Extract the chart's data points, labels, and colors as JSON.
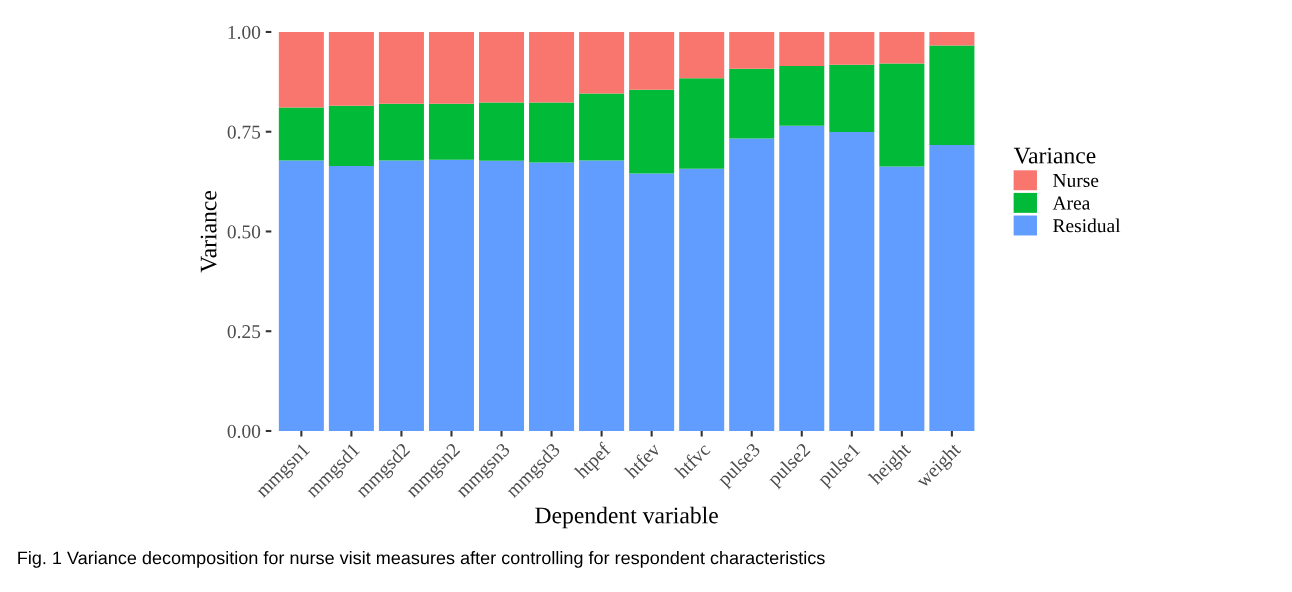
{
  "chart_data": {
    "type": "bar",
    "stacked": true,
    "xlabel": "Dependent variable",
    "ylabel": "Variance",
    "legend_title": "Variance",
    "legend": "right",
    "grid": false,
    "categories": [
      "mmgsn1",
      "mmgsd1",
      "mmgsd2",
      "mmgsn2",
      "mmgsn3",
      "mmgsd3",
      "htpef",
      "htfev",
      "htfvc",
      "pulse3",
      "pulse2",
      "pulse1",
      "height",
      "weight"
    ],
    "series": [
      {
        "name": "Residual",
        "color": "#619cff",
        "values": [
          0.678,
          0.664,
          0.678,
          0.68,
          0.677,
          0.673,
          0.678,
          0.645,
          0.657,
          0.733,
          0.765,
          0.749,
          0.663,
          0.717
        ]
      },
      {
        "name": "Area",
        "color": "#00ba38",
        "values": [
          0.133,
          0.151,
          0.142,
          0.14,
          0.146,
          0.15,
          0.168,
          0.21,
          0.227,
          0.175,
          0.15,
          0.169,
          0.258,
          0.249
        ]
      },
      {
        "name": "Nurse",
        "color": "#f8766d",
        "values": [
          0.189,
          0.185,
          0.18,
          0.18,
          0.177,
          0.177,
          0.154,
          0.145,
          0.116,
          0.092,
          0.085,
          0.082,
          0.079,
          0.034
        ]
      }
    ],
    "ylim": [
      0,
      1
    ],
    "yticks": [
      {
        "value": 0,
        "label": "0.00"
      },
      {
        "value": 0.25,
        "label": "0.25"
      },
      {
        "value": 0.5,
        "label": "0.50"
      },
      {
        "value": 0.75,
        "label": "0.75"
      },
      {
        "value": 1,
        "label": "1.00"
      }
    ],
    "annotations": [
      "Fig. 1 Variance decomposition for nurse visit measures after controlling for respondent characteristics"
    ]
  }
}
